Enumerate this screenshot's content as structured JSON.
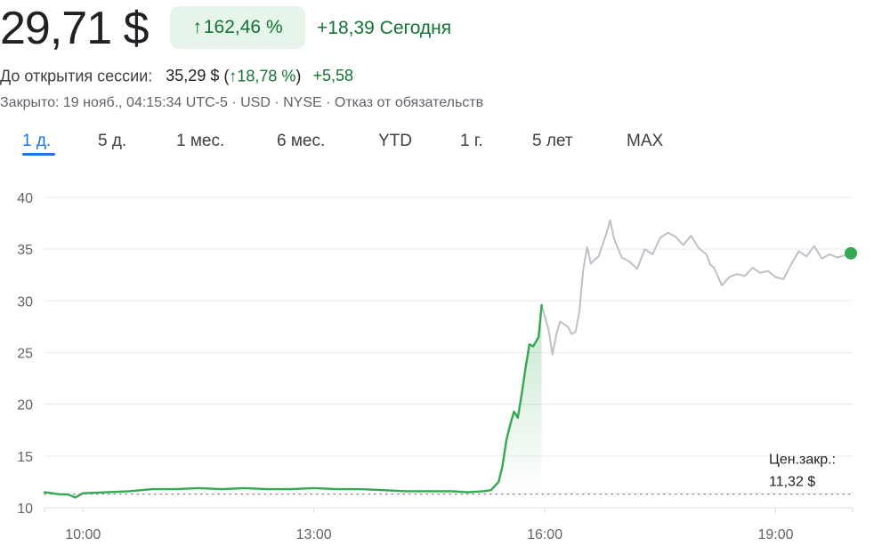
{
  "quote": {
    "price": "29,71 $",
    "change_pct_arrow": "↑",
    "change_pct": "162,46 %",
    "change_today": "+18,39 Сегодня"
  },
  "premarket": {
    "label": "До открытия сессии:",
    "price": "35,29 $",
    "paren_open": "(",
    "pct_arrow": "↑",
    "pct": "18,78 %",
    "paren_close": ")",
    "change": "+5,58"
  },
  "status": "Закрыто: 19 нояб., 04:15:34 UTC-5 · USD · NYSE · Отказ от обязательств",
  "tabs": [
    "1 д.",
    "5 д.",
    "1 мес.",
    "6 мес.",
    "YTD",
    "1 г.",
    "5 лет",
    "MAX"
  ],
  "active_tab": 0,
  "colors": {
    "up": "#34a853",
    "up_text": "#137333",
    "after_hours": "#bdc1c6",
    "accent": "#1a73e8",
    "grid": "#e8eaed",
    "prev_close_line": "#80868b"
  },
  "chart_data": {
    "type": "line",
    "x_ticks": [
      "10:00",
      "13:00",
      "16:00",
      "19:00"
    ],
    "y_ticks": [
      "10",
      "15",
      "20",
      "25",
      "30",
      "35",
      "40"
    ],
    "ylim": [
      10,
      40
    ],
    "xlim_hours": [
      9.5,
      20.0
    ],
    "grid": true,
    "previous_close": {
      "label_line1": "Цен.закр.:",
      "label_line2": "11,32 $",
      "value": 11.32
    },
    "series": [
      {
        "session": "regular",
        "points": [
          [
            9.5,
            11.5
          ],
          [
            9.6,
            11.4
          ],
          [
            9.7,
            11.3
          ],
          [
            9.8,
            11.3
          ],
          [
            9.9,
            11.0
          ],
          [
            10.0,
            11.4
          ],
          [
            10.3,
            11.5
          ],
          [
            10.6,
            11.6
          ],
          [
            10.9,
            11.8
          ],
          [
            11.2,
            11.8
          ],
          [
            11.5,
            11.9
          ],
          [
            11.8,
            11.8
          ],
          [
            12.1,
            11.9
          ],
          [
            12.4,
            11.8
          ],
          [
            12.7,
            11.8
          ],
          [
            13.0,
            11.9
          ],
          [
            13.3,
            11.8
          ],
          [
            13.6,
            11.8
          ],
          [
            13.9,
            11.7
          ],
          [
            14.2,
            11.6
          ],
          [
            14.5,
            11.6
          ],
          [
            14.8,
            11.6
          ],
          [
            15.0,
            11.5
          ],
          [
            15.2,
            11.6
          ],
          [
            15.3,
            11.7
          ],
          [
            15.4,
            12.5
          ],
          [
            15.45,
            14.0
          ],
          [
            15.5,
            16.5
          ],
          [
            15.55,
            18.0
          ],
          [
            15.6,
            19.3
          ],
          [
            15.65,
            18.7
          ],
          [
            15.7,
            21.0
          ],
          [
            15.75,
            23.5
          ],
          [
            15.8,
            25.8
          ],
          [
            15.85,
            25.6
          ],
          [
            15.92,
            26.5
          ],
          [
            15.96,
            29.6
          ]
        ]
      },
      {
        "session": "after_hours",
        "points": [
          [
            15.96,
            29.6
          ],
          [
            16.0,
            28.5
          ],
          [
            16.05,
            27.2
          ],
          [
            16.1,
            24.8
          ],
          [
            16.15,
            26.8
          ],
          [
            16.2,
            28.0
          ],
          [
            16.3,
            27.5
          ],
          [
            16.35,
            26.8
          ],
          [
            16.4,
            27.0
          ],
          [
            16.45,
            29.0
          ],
          [
            16.5,
            33.0
          ],
          [
            16.55,
            35.2
          ],
          [
            16.6,
            33.6
          ],
          [
            16.65,
            34.0
          ],
          [
            16.7,
            34.3
          ],
          [
            16.8,
            36.5
          ],
          [
            16.85,
            37.8
          ],
          [
            16.9,
            36.0
          ],
          [
            17.0,
            34.2
          ],
          [
            17.1,
            33.8
          ],
          [
            17.2,
            33.1
          ],
          [
            17.3,
            35.0
          ],
          [
            17.4,
            34.5
          ],
          [
            17.5,
            36.1
          ],
          [
            17.6,
            36.6
          ],
          [
            17.7,
            36.2
          ],
          [
            17.8,
            35.4
          ],
          [
            17.9,
            36.3
          ],
          [
            18.0,
            35.1
          ],
          [
            18.1,
            34.5
          ],
          [
            18.15,
            33.5
          ],
          [
            18.2,
            33.2
          ],
          [
            18.3,
            31.5
          ],
          [
            18.4,
            32.3
          ],
          [
            18.5,
            32.6
          ],
          [
            18.6,
            32.4
          ],
          [
            18.7,
            33.2
          ],
          [
            18.8,
            32.7
          ],
          [
            18.9,
            32.9
          ],
          [
            19.0,
            32.3
          ],
          [
            19.1,
            32.1
          ],
          [
            19.2,
            33.5
          ],
          [
            19.3,
            34.8
          ],
          [
            19.4,
            34.3
          ],
          [
            19.5,
            35.3
          ],
          [
            19.6,
            34.1
          ],
          [
            19.7,
            34.5
          ],
          [
            19.8,
            34.2
          ],
          [
            19.9,
            34.4
          ],
          [
            20.0,
            34.6
          ]
        ]
      }
    ]
  }
}
